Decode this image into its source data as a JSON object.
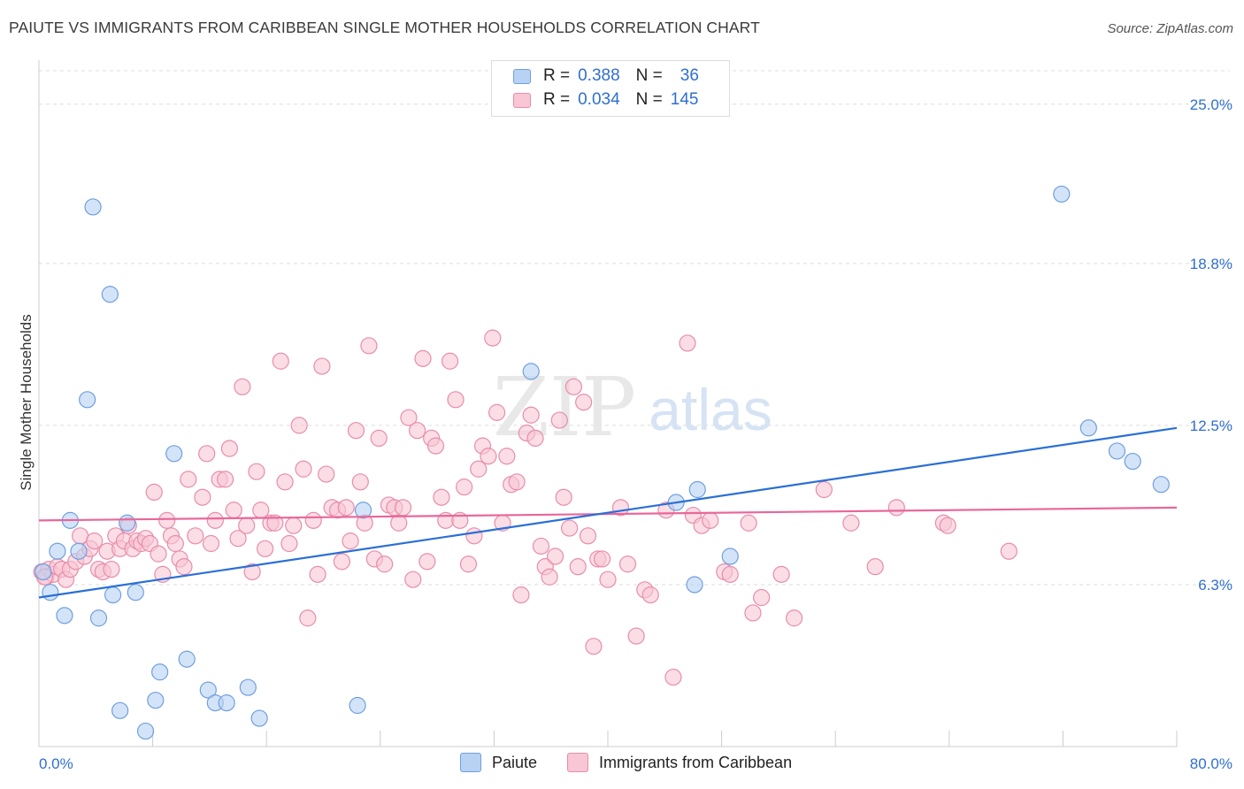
{
  "header": {
    "title": "PAIUTE VS IMMIGRANTS FROM CARIBBEAN SINGLE MOTHER HOUSEHOLDS CORRELATION CHART",
    "source": "Source: ZipAtlas.com"
  },
  "watermark": {
    "zip": "ZIP",
    "atlas": "atlas"
  },
  "legend": {
    "rows": [
      {
        "r_label": "R =",
        "r_value": "0.388",
        "n_label": "N =",
        "n_value": "36",
        "color": "#6f9fdf"
      },
      {
        "r_label": "R =",
        "r_value": "0.034",
        "n_label": "N =",
        "n_value": "145",
        "color": "#e88daa"
      }
    ],
    "series_names": [
      "Paiute",
      "Immigrants from Caribbean"
    ]
  },
  "colors": {
    "blue_fill": "#b8d2f4",
    "blue_stroke": "#6f9fdf",
    "blue_line": "#2a6fd6",
    "pink_fill": "#f8c6d5",
    "pink_stroke": "#e88daa",
    "pink_line": "#e8679a",
    "tick_text": "#2f6fd0",
    "grid": "#dddddd"
  },
  "chart_data": {
    "type": "scatter",
    "ylabel": "Single Mother Households",
    "xlim": [
      0,
      80
    ],
    "ylim": [
      0,
      26.3
    ],
    "x_tick_labels": [
      "0.0%",
      "80.0%"
    ],
    "y_ticks": [
      6.3,
      12.5,
      18.8,
      25.0
    ],
    "y_tick_labels": [
      "6.3%",
      "12.5%",
      "18.8%",
      "25.0%"
    ],
    "grid": "horizontal dashed",
    "series": [
      {
        "name": "Paiute",
        "trend": {
          "x": [
            0,
            80
          ],
          "y": [
            5.8,
            12.4
          ]
        },
        "points": [
          [
            0.8,
            6.0
          ],
          [
            1.3,
            7.6
          ],
          [
            1.8,
            5.1
          ],
          [
            2.2,
            8.8
          ],
          [
            2.8,
            7.6
          ],
          [
            3.4,
            13.5
          ],
          [
            3.8,
            21.0
          ],
          [
            4.2,
            5.0
          ],
          [
            5.0,
            17.6
          ],
          [
            5.2,
            5.9
          ],
          [
            5.7,
            1.4
          ],
          [
            6.2,
            8.7
          ],
          [
            6.8,
            6.0
          ],
          [
            7.5,
            0.6
          ],
          [
            8.2,
            1.8
          ],
          [
            8.5,
            2.9
          ],
          [
            9.5,
            11.4
          ],
          [
            10.4,
            3.4
          ],
          [
            11.9,
            2.2
          ],
          [
            12.4,
            1.7
          ],
          [
            13.2,
            1.7
          ],
          [
            14.7,
            2.3
          ],
          [
            15.5,
            1.1
          ],
          [
            22.4,
            1.6
          ],
          [
            22.8,
            9.2
          ],
          [
            34.6,
            14.6
          ],
          [
            44.8,
            9.5
          ],
          [
            46.3,
            10.0
          ],
          [
            46.1,
            6.3
          ],
          [
            48.6,
            7.4
          ],
          [
            71.9,
            21.5
          ],
          [
            73.8,
            12.4
          ],
          [
            75.8,
            11.5
          ],
          [
            76.9,
            11.1
          ],
          [
            78.9,
            10.2
          ],
          [
            0.3,
            6.8
          ]
        ]
      },
      {
        "name": "Immigrants from Caribbean",
        "trend": {
          "x": [
            0,
            80
          ],
          "y": [
            8.8,
            9.3
          ]
        },
        "points": [
          [
            0.2,
            6.8
          ],
          [
            0.5,
            6.6
          ],
          [
            0.7,
            6.9
          ],
          [
            1.0,
            6.7
          ],
          [
            1.3,
            7.0
          ],
          [
            1.6,
            6.9
          ],
          [
            1.9,
            6.5
          ],
          [
            2.2,
            6.9
          ],
          [
            2.6,
            7.2
          ],
          [
            2.9,
            8.2
          ],
          [
            3.2,
            7.4
          ],
          [
            3.6,
            7.7
          ],
          [
            3.9,
            8.0
          ],
          [
            4.2,
            6.9
          ],
          [
            4.5,
            6.8
          ],
          [
            4.8,
            7.6
          ],
          [
            5.1,
            6.9
          ],
          [
            5.4,
            8.2
          ],
          [
            5.7,
            7.7
          ],
          [
            6.0,
            8.0
          ],
          [
            6.3,
            8.6
          ],
          [
            6.6,
            7.7
          ],
          [
            6.9,
            8.0
          ],
          [
            7.2,
            7.9
          ],
          [
            7.5,
            8.1
          ],
          [
            7.8,
            7.9
          ],
          [
            8.1,
            9.9
          ],
          [
            8.4,
            7.5
          ],
          [
            8.7,
            6.7
          ],
          [
            9.0,
            8.8
          ],
          [
            9.3,
            8.2
          ],
          [
            9.6,
            7.9
          ],
          [
            9.9,
            7.3
          ],
          [
            10.2,
            7.0
          ],
          [
            10.5,
            10.4
          ],
          [
            11.0,
            8.2
          ],
          [
            11.5,
            9.7
          ],
          [
            11.8,
            11.4
          ],
          [
            12.1,
            7.9
          ],
          [
            12.4,
            8.8
          ],
          [
            12.7,
            10.4
          ],
          [
            13.1,
            10.4
          ],
          [
            13.4,
            11.6
          ],
          [
            13.7,
            9.2
          ],
          [
            14.0,
            8.1
          ],
          [
            14.3,
            14.0
          ],
          [
            14.6,
            8.6
          ],
          [
            15.0,
            6.8
          ],
          [
            15.3,
            10.7
          ],
          [
            15.6,
            9.2
          ],
          [
            15.9,
            7.7
          ],
          [
            16.3,
            8.7
          ],
          [
            16.6,
            8.7
          ],
          [
            17.0,
            15.0
          ],
          [
            17.3,
            10.3
          ],
          [
            17.6,
            7.9
          ],
          [
            17.9,
            8.6
          ],
          [
            18.3,
            12.5
          ],
          [
            18.6,
            10.8
          ],
          [
            18.9,
            5.0
          ],
          [
            19.3,
            8.8
          ],
          [
            19.6,
            6.7
          ],
          [
            19.9,
            14.8
          ],
          [
            20.2,
            10.6
          ],
          [
            20.6,
            9.3
          ],
          [
            21.0,
            9.2
          ],
          [
            21.3,
            7.2
          ],
          [
            21.6,
            9.3
          ],
          [
            21.9,
            8.0
          ],
          [
            22.3,
            12.3
          ],
          [
            22.6,
            10.3
          ],
          [
            22.9,
            8.7
          ],
          [
            23.2,
            15.6
          ],
          [
            23.6,
            7.3
          ],
          [
            23.9,
            12.0
          ],
          [
            24.3,
            7.1
          ],
          [
            24.6,
            9.4
          ],
          [
            25.0,
            9.3
          ],
          [
            25.3,
            8.7
          ],
          [
            25.6,
            9.3
          ],
          [
            26.0,
            12.8
          ],
          [
            26.3,
            6.5
          ],
          [
            26.6,
            12.3
          ],
          [
            27.0,
            15.1
          ],
          [
            27.3,
            7.2
          ],
          [
            27.6,
            12.0
          ],
          [
            27.9,
            11.7
          ],
          [
            28.3,
            9.7
          ],
          [
            28.6,
            8.8
          ],
          [
            28.9,
            15.0
          ],
          [
            29.3,
            13.5
          ],
          [
            29.6,
            8.8
          ],
          [
            29.9,
            10.1
          ],
          [
            30.2,
            7.1
          ],
          [
            30.6,
            8.2
          ],
          [
            30.9,
            10.8
          ],
          [
            31.2,
            11.7
          ],
          [
            31.6,
            11.3
          ],
          [
            31.9,
            15.9
          ],
          [
            32.2,
            13.0
          ],
          [
            32.6,
            8.7
          ],
          [
            32.9,
            11.3
          ],
          [
            33.2,
            10.2
          ],
          [
            33.6,
            10.3
          ],
          [
            33.9,
            5.9
          ],
          [
            34.3,
            12.2
          ],
          [
            34.6,
            12.9
          ],
          [
            34.9,
            12.0
          ],
          [
            35.3,
            7.8
          ],
          [
            35.6,
            7.0
          ],
          [
            35.9,
            6.6
          ],
          [
            36.3,
            7.4
          ],
          [
            36.6,
            12.7
          ],
          [
            36.9,
            9.7
          ],
          [
            37.3,
            8.5
          ],
          [
            37.6,
            14.0
          ],
          [
            37.9,
            7.0
          ],
          [
            38.3,
            13.4
          ],
          [
            38.6,
            8.2
          ],
          [
            39.0,
            3.9
          ],
          [
            39.3,
            7.3
          ],
          [
            39.6,
            7.3
          ],
          [
            40.0,
            6.5
          ],
          [
            40.9,
            9.3
          ],
          [
            41.4,
            7.1
          ],
          [
            42.0,
            4.3
          ],
          [
            42.6,
            6.1
          ],
          [
            43.0,
            5.9
          ],
          [
            44.1,
            9.2
          ],
          [
            44.6,
            2.7
          ],
          [
            45.6,
            15.7
          ],
          [
            46.0,
            9.0
          ],
          [
            46.6,
            8.6
          ],
          [
            47.2,
            8.8
          ],
          [
            48.2,
            6.8
          ],
          [
            48.6,
            6.7
          ],
          [
            49.9,
            8.7
          ],
          [
            50.2,
            5.2
          ],
          [
            50.8,
            5.8
          ],
          [
            52.2,
            6.7
          ],
          [
            53.1,
            5.0
          ],
          [
            55.2,
            10.0
          ],
          [
            57.1,
            8.7
          ],
          [
            58.8,
            7.0
          ],
          [
            60.3,
            9.3
          ],
          [
            63.6,
            8.7
          ],
          [
            63.9,
            8.6
          ],
          [
            68.2,
            7.6
          ],
          [
            0.4,
            6.6
          ]
        ]
      }
    ]
  }
}
